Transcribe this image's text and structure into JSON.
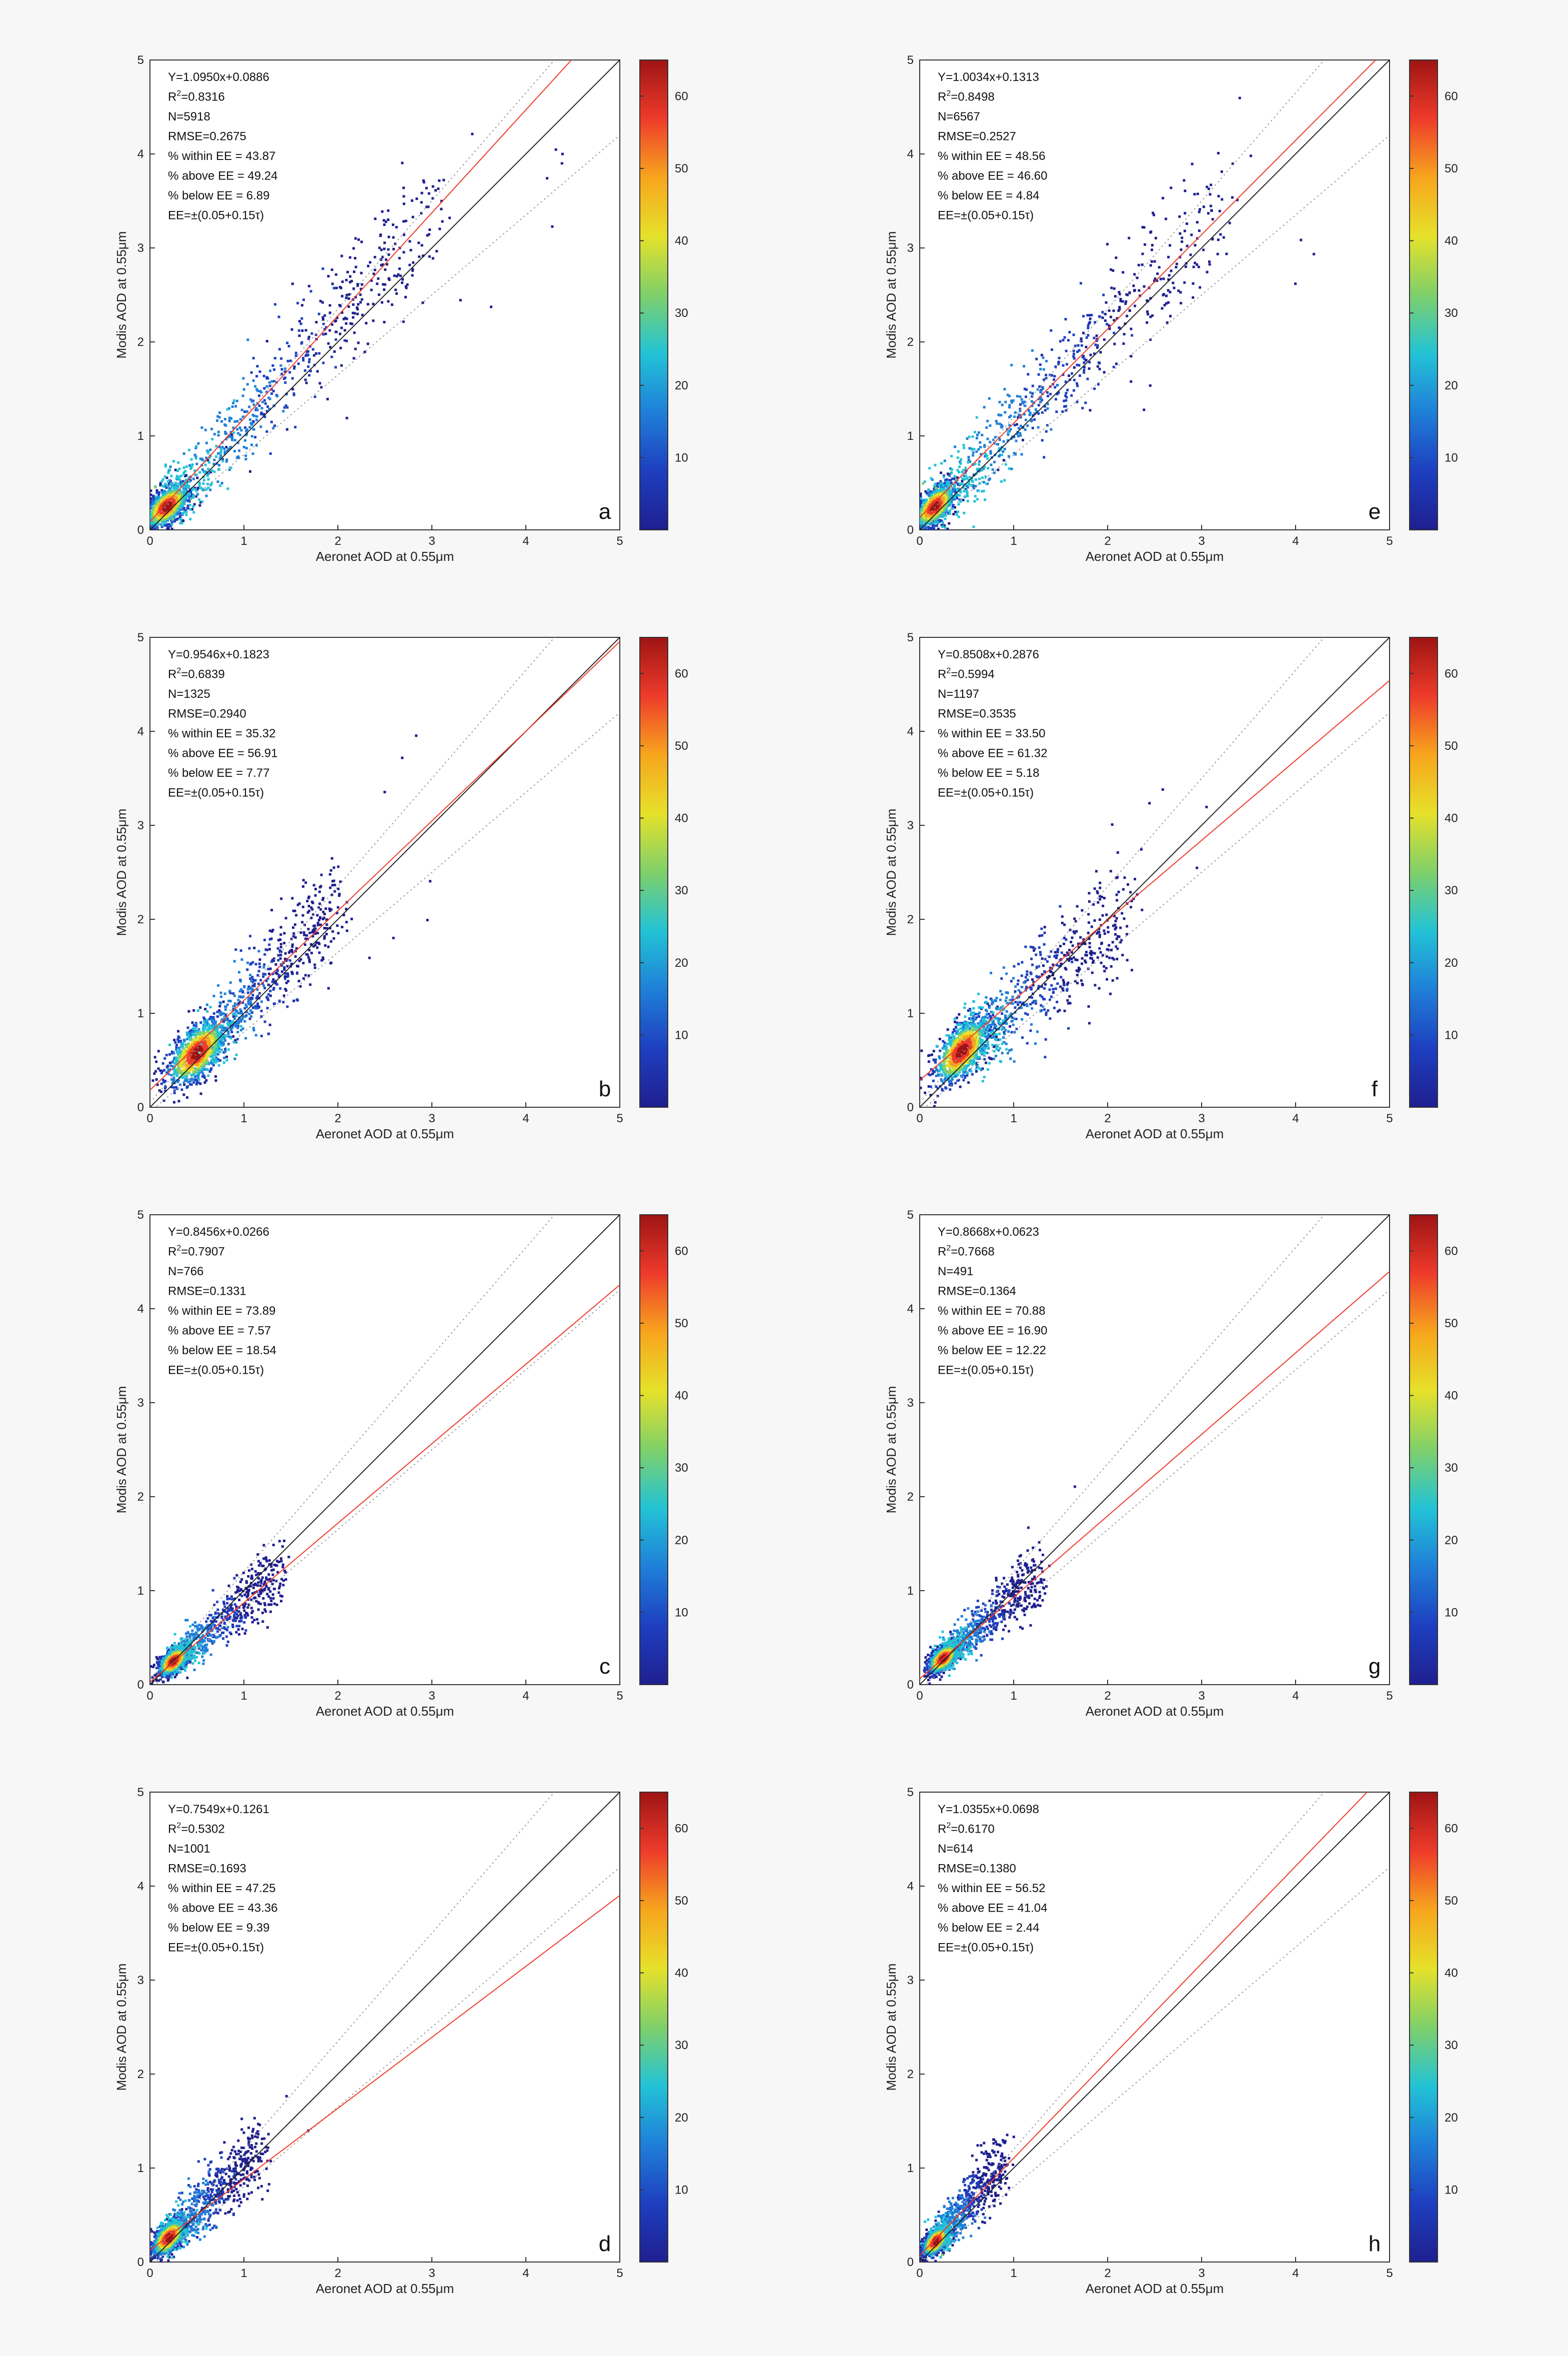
{
  "figure": {
    "axis_labels": {
      "x": "Aeronet AOD at 0.55μm",
      "y": "Modis AOD at 0.55μm"
    },
    "tick_labels": [
      "0",
      "1",
      "2",
      "3",
      "4",
      "5"
    ],
    "colorbar_ticks": [
      "10",
      "20",
      "30",
      "40",
      "50",
      "60"
    ],
    "ee_label": "EE=±(0.05+0.15τ)",
    "colors": {
      "one_to_one": "#222222",
      "fit": "#ee3b2b",
      "ee_lines": "#9a9a9a",
      "colormap": [
        "#1f1f8f",
        "#1e3fbf",
        "#1f7fd8",
        "#22c3d6",
        "#7fd06a",
        "#e6e12a",
        "#f7a51d",
        "#ee3b2b",
        "#9e1414"
      ]
    }
  },
  "chart_data": [
    {
      "type": "scatter",
      "panel": "a",
      "xlim": [
        0,
        5
      ],
      "ylim": [
        0,
        5
      ],
      "colorbar_range": [
        0,
        65
      ],
      "fit": {
        "slope": 1.095,
        "intercept": 0.0886
      },
      "stats": {
        "equation": "Y=1.0950x+0.0886",
        "r2_prefix": "R",
        "r2_sup": "2",
        "r2_value": "=0.8316",
        "n": "N=5918",
        "rmse": "RMSE=0.2675",
        "within": "% within EE = 43.87",
        "above": "% above EE = 49.24",
        "below": "% below EE = 6.89"
      },
      "density_center": [
        0.18,
        0.25
      ],
      "spread": [
        0.12,
        0.12
      ],
      "tail_to": [
        3.0,
        3.4
      ],
      "tail_width": 0.35,
      "outliers": 34
    },
    {
      "type": "scatter",
      "panel": "e",
      "xlim": [
        0,
        5
      ],
      "ylim": [
        0,
        5
      ],
      "colorbar_range": [
        0,
        65
      ],
      "fit": {
        "slope": 1.0034,
        "intercept": 0.1313
      },
      "stats": {
        "equation": "Y=1.0034x+0.1313",
        "r2_prefix": "R",
        "r2_sup": "2",
        "r2_value": "=0.8498",
        "n": "N=6567",
        "rmse": "RMSE=0.2527",
        "within": "% within EE = 48.56",
        "above": "% above EE = 46.60",
        "below": "% below EE = 4.84"
      },
      "density_center": [
        0.16,
        0.25
      ],
      "spread": [
        0.11,
        0.12
      ],
      "tail_to": [
        3.2,
        3.4
      ],
      "tail_width": 0.33,
      "outliers": 34
    },
    {
      "type": "scatter",
      "panel": "b",
      "xlim": [
        0,
        5
      ],
      "ylim": [
        0,
        5
      ],
      "colorbar_range": [
        0,
        65
      ],
      "fit": {
        "slope": 0.9546,
        "intercept": 0.1823
      },
      "stats": {
        "equation": "Y=0.9546x+0.1823",
        "r2_prefix": "R",
        "r2_sup": "2",
        "r2_value": "=0.6839",
        "n": "N=1325",
        "rmse": "RMSE=0.2940",
        "within": "% within EE = 35.32",
        "above": "% above EE = 56.91",
        "below": "% below EE = 7.77"
      },
      "density_center": [
        0.5,
        0.58
      ],
      "spread": [
        0.16,
        0.18
      ],
      "tail_to": [
        2.0,
        2.2
      ],
      "tail_width": 0.3,
      "outliers": 12
    },
    {
      "type": "scatter",
      "panel": "f",
      "xlim": [
        0,
        5
      ],
      "ylim": [
        0,
        5
      ],
      "colorbar_range": [
        0,
        65
      ],
      "fit": {
        "slope": 0.8508,
        "intercept": 0.2876
      },
      "stats": {
        "equation": "Y=0.8508x+0.2876",
        "r2_prefix": "R",
        "r2_sup": "2",
        "r2_value": "=0.5994",
        "n": "N=1197",
        "rmse": "RMSE=0.3535",
        "within": "% within EE = 33.50",
        "above": "% above EE = 61.32",
        "below": "% below EE = 5.18"
      },
      "density_center": [
        0.45,
        0.6
      ],
      "spread": [
        0.15,
        0.18
      ],
      "tail_to": [
        2.2,
        2.1
      ],
      "tail_width": 0.35,
      "outliers": 18
    },
    {
      "type": "scatter",
      "panel": "c",
      "xlim": [
        0,
        5
      ],
      "ylim": [
        0,
        5
      ],
      "colorbar_range": [
        0,
        65
      ],
      "fit": {
        "slope": 0.8456,
        "intercept": 0.0266
      },
      "stats": {
        "equation": "Y=0.8456x+0.0266",
        "r2_prefix": "R",
        "r2_sup": "2",
        "r2_value": "=0.7907",
        "n": "N=766",
        "rmse": "RMSE=0.1331",
        "within": "% within EE = 73.89",
        "above": "% above EE = 7.57",
        "below": "% below EE = 18.54"
      },
      "density_center": [
        0.25,
        0.25
      ],
      "spread": [
        0.08,
        0.08
      ],
      "tail_to": [
        1.4,
        1.2
      ],
      "tail_width": 0.18,
      "outliers": 4
    },
    {
      "type": "scatter",
      "panel": "g",
      "xlim": [
        0,
        5
      ],
      "ylim": [
        0,
        5
      ],
      "colorbar_range": [
        0,
        65
      ],
      "fit": {
        "slope": 0.8668,
        "intercept": 0.0623
      },
      "stats": {
        "equation": "Y=0.8668x+0.0623",
        "r2_prefix": "R",
        "r2_sup": "2",
        "r2_value": "=0.7668",
        "n": "N=491",
        "rmse": "RMSE=0.1364",
        "within": "% within EE = 70.88",
        "above": "% above EE = 16.90",
        "below": "% below EE = 12.22"
      },
      "density_center": [
        0.25,
        0.28
      ],
      "spread": [
        0.08,
        0.08
      ],
      "tail_to": [
        1.3,
        1.2
      ],
      "tail_width": 0.18,
      "outliers": 4
    },
    {
      "type": "scatter",
      "panel": "d",
      "xlim": [
        0,
        5
      ],
      "ylim": [
        0,
        5
      ],
      "colorbar_range": [
        0,
        65
      ],
      "fit": {
        "slope": 0.7549,
        "intercept": 0.1261
      },
      "stats": {
        "equation": "Y=0.7549x+0.1261",
        "r2_prefix": "R",
        "r2_sup": "2",
        "r2_value": "=0.5302",
        "n": "N=1001",
        "rmse": "RMSE=0.1693",
        "within": "% within EE = 47.25",
        "above": "% above EE = 43.36",
        "below": "% below EE = 9.39"
      },
      "density_center": [
        0.2,
        0.26
      ],
      "spread": [
        0.09,
        0.1
      ],
      "tail_to": [
        1.2,
        1.2
      ],
      "tail_width": 0.22,
      "outliers": 10
    },
    {
      "type": "scatter",
      "panel": "h",
      "xlim": [
        0,
        5
      ],
      "ylim": [
        0,
        5
      ],
      "colorbar_range": [
        0,
        65
      ],
      "fit": {
        "slope": 1.0355,
        "intercept": 0.0698
      },
      "stats": {
        "equation": "Y=1.0355x+0.0698",
        "r2_prefix": "R",
        "r2_sup": "2",
        "r2_value": "=0.6170",
        "n": "N=614",
        "rmse": "RMSE=0.1380",
        "within": "% within EE = 56.52",
        "above": "% above EE = 41.04",
        "below": "% below EE = 2.44"
      },
      "density_center": [
        0.17,
        0.22
      ],
      "spread": [
        0.07,
        0.08
      ],
      "tail_to": [
        0.9,
        1.1
      ],
      "tail_width": 0.18,
      "outliers": 5
    }
  ]
}
